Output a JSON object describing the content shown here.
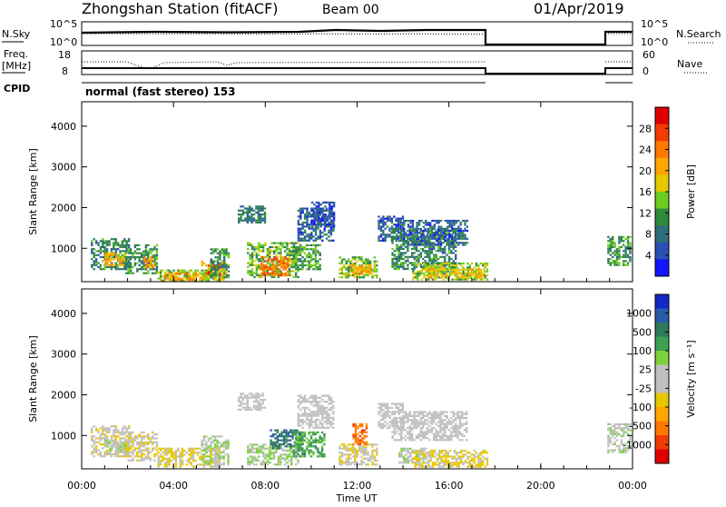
{
  "header": {
    "station_title": "Zhongshan Station (fitACF)",
    "beam_label": "Beam 00",
    "date_label": "01/Apr/2019"
  },
  "sky_panel": {
    "left_label": "N.Sky",
    "left_ticks": [
      "10^5",
      "10^0"
    ],
    "right_ticks": [
      "10^5",
      "10^0"
    ],
    "right_label": "N.Search"
  },
  "freq_panel": {
    "left_label_line1": "Freq.",
    "left_label_line2": "[MHz]",
    "left_ticks": [
      "18",
      "8"
    ],
    "right_ticks": [
      "60",
      "0"
    ],
    "right_label": "Nave"
  },
  "cpid": {
    "label": "CPID",
    "mode_text": "normal (fast stereo) 153"
  },
  "power_panel": {
    "ylabel": "Slant Range [km]",
    "yticks": [
      "4000",
      "3000",
      "2000",
      "1000"
    ],
    "colorbar_label": "Power [dB]",
    "colorbar_ticks": [
      "28",
      "24",
      "20",
      "16",
      "12",
      "8",
      "4"
    ],
    "colorbar_colors": [
      "#e00000",
      "#f23c00",
      "#ff7800",
      "#ffa500",
      "#e6c800",
      "#6ccc20",
      "#2e8a3c",
      "#2e6e78",
      "#2a50b4",
      "#1414ff"
    ]
  },
  "velocity_panel": {
    "ylabel": "Slant Range [km]",
    "yticks": [
      "4000",
      "3000",
      "2000",
      "1000"
    ],
    "colorbar_label": "Velocity [m s⁻¹]",
    "colorbar_ticks": [
      "1000",
      "500",
      "100",
      "25",
      "-25",
      "-100",
      "-500",
      "-1000"
    ],
    "colorbar_colors": [
      "#1428c8",
      "#2a5aa8",
      "#2e7a5a",
      "#3ca050",
      "#7cd23c",
      "#c0c0c0",
      "#c0c0c0",
      "#e6c800",
      "#ffa500",
      "#ff7800",
      "#f03c00",
      "#e00000"
    ]
  },
  "xaxis": {
    "label": "Time UT",
    "ticks": [
      "00:00",
      "04:00",
      "08:00",
      "12:00",
      "16:00",
      "20:00",
      "00:00"
    ]
  },
  "chart_data": {
    "type": "heatmap",
    "title": "Zhongshan Station (fitACF)",
    "subtitle": "Beam 00",
    "date": "01/Apr/2019",
    "xlabel": "Time UT",
    "ylabel": "Slant Range [km]",
    "xlim_hours": [
      0,
      24
    ],
    "ylim_km": [
      180,
      4600
    ],
    "power_range_db": [
      0,
      30
    ],
    "velocity_range_ms": [
      -1000,
      1000
    ],
    "data_gap_hours": [
      17.7,
      22.9
    ],
    "power_regions": [
      {
        "t0": 0.4,
        "t1": 2.1,
        "r0": 500,
        "r1": 1250,
        "db": 9
      },
      {
        "t0": 1.0,
        "t1": 1.9,
        "r0": 600,
        "r1": 900,
        "db": 18
      },
      {
        "t0": 1.9,
        "t1": 3.3,
        "r0": 400,
        "r1": 1100,
        "db": 10
      },
      {
        "t0": 2.7,
        "t1": 3.1,
        "r0": 550,
        "r1": 800,
        "db": 20
      },
      {
        "t0": 3.3,
        "t1": 6.0,
        "r0": 230,
        "r1": 480,
        "db": 14
      },
      {
        "t0": 3.6,
        "t1": 5.2,
        "r0": 250,
        "r1": 400,
        "db": 20
      },
      {
        "t0": 5.2,
        "t1": 6.3,
        "r0": 230,
        "r1": 700,
        "db": 16
      },
      {
        "t0": 5.4,
        "t1": 6.0,
        "r0": 350,
        "r1": 600,
        "db": 28
      },
      {
        "t0": 5.6,
        "t1": 6.4,
        "r0": 300,
        "r1": 1000,
        "db": 10
      },
      {
        "t0": 6.8,
        "t1": 8.0,
        "r0": 1650,
        "r1": 2050,
        "db": 8
      },
      {
        "t0": 7.2,
        "t1": 9.4,
        "r0": 300,
        "r1": 1150,
        "db": 12
      },
      {
        "t0": 7.8,
        "t1": 9.0,
        "r0": 350,
        "r1": 800,
        "db": 22
      },
      {
        "t0": 9.4,
        "t1": 11.0,
        "r0": 1200,
        "r1": 2000,
        "db": 6
      },
      {
        "t0": 9.2,
        "t1": 10.4,
        "r0": 500,
        "r1": 1100,
        "db": 11
      },
      {
        "t0": 10.0,
        "t1": 11.0,
        "r0": 1550,
        "r1": 2150,
        "db": 5
      },
      {
        "t0": 11.2,
        "t1": 12.9,
        "r0": 300,
        "r1": 800,
        "db": 13
      },
      {
        "t0": 11.6,
        "t1": 12.6,
        "r0": 380,
        "r1": 600,
        "db": 20
      },
      {
        "t0": 12.9,
        "t1": 14.0,
        "r0": 1200,
        "r1": 1800,
        "db": 6
      },
      {
        "t0": 13.5,
        "t1": 16.3,
        "r0": 500,
        "r1": 1500,
        "db": 9
      },
      {
        "t0": 14.0,
        "t1": 16.8,
        "r0": 1100,
        "r1": 1700,
        "db": 6
      },
      {
        "t0": 14.4,
        "t1": 17.7,
        "r0": 230,
        "r1": 650,
        "db": 14
      },
      {
        "t0": 15.0,
        "t1": 17.5,
        "r0": 300,
        "r1": 500,
        "db": 18
      },
      {
        "t0": 22.9,
        "t1": 23.9,
        "r0": 600,
        "r1": 1300,
        "db": 11
      }
    ],
    "velocity_regions": [
      {
        "t0": 0.4,
        "t1": 2.1,
        "r0": 500,
        "r1": 1250,
        "v": -120
      },
      {
        "t0": 1.0,
        "t1": 2.0,
        "r0": 600,
        "r1": 900,
        "v": 100
      },
      {
        "t0": 1.9,
        "t1": 3.3,
        "r0": 400,
        "r1": 1100,
        "v": -150
      },
      {
        "t0": 3.3,
        "t1": 6.0,
        "r0": 230,
        "r1": 700,
        "v": -200
      },
      {
        "t0": 5.2,
        "t1": 6.4,
        "r0": 300,
        "r1": 1000,
        "v": 150
      },
      {
        "t0": 6.8,
        "t1": 8.0,
        "r0": 1650,
        "r1": 2050,
        "v": 0
      },
      {
        "t0": 7.2,
        "t1": 9.4,
        "r0": 300,
        "r1": 800,
        "v": 150
      },
      {
        "t0": 8.2,
        "t1": 9.6,
        "r0": 700,
        "r1": 1150,
        "v": 600
      },
      {
        "t0": 9.4,
        "t1": 11.0,
        "r0": 1200,
        "r1": 2000,
        "v": 0
      },
      {
        "t0": 9.2,
        "t1": 10.6,
        "r0": 500,
        "r1": 1100,
        "v": 400
      },
      {
        "t0": 11.2,
        "t1": 12.9,
        "r0": 300,
        "r1": 800,
        "v": -150
      },
      {
        "t0": 11.8,
        "t1": 12.4,
        "r0": 800,
        "r1": 1300,
        "v": -600
      },
      {
        "t0": 12.9,
        "t1": 14.0,
        "r0": 1200,
        "r1": 1800,
        "v": 0
      },
      {
        "t0": 13.5,
        "t1": 16.8,
        "r0": 900,
        "r1": 1600,
        "v": 0
      },
      {
        "t0": 13.8,
        "t1": 15.0,
        "r0": 350,
        "r1": 700,
        "v": 120
      },
      {
        "t0": 14.4,
        "t1": 17.7,
        "r0": 230,
        "r1": 650,
        "v": -200
      },
      {
        "t0": 22.9,
        "t1": 23.9,
        "r0": 600,
        "r1": 1300,
        "v": 100
      }
    ],
    "n_sky_trace": {
      "level": "upper",
      "gap_hours": [
        17.7,
        22.9
      ]
    },
    "freq_trace": {
      "level": "low",
      "gap_hours": [
        17.7,
        22.9
      ]
    }
  }
}
